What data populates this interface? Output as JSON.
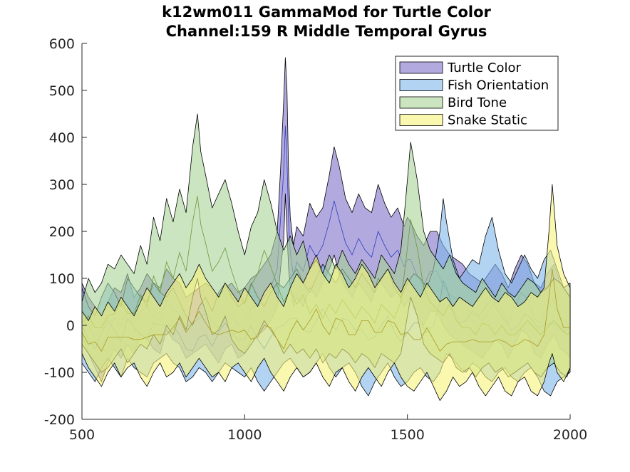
{
  "chart_data": {
    "type": "area",
    "title": [
      "k12wm011 GammaMod for Turtle Color",
      "Channel:159 R Middle Temporal Gyrus"
    ],
    "xlabel": "",
    "ylabel": "",
    "xlim": [
      500,
      2000
    ],
    "ylim": [
      -200,
      600
    ],
    "xticks": [
      500,
      1000,
      1500,
      2000
    ],
    "yticks": [
      -200,
      -100,
      0,
      100,
      200,
      300,
      400,
      500,
      600
    ],
    "grid": false,
    "legend_position": "top-right",
    "series": [
      {
        "name": "Turtle Color",
        "fill_color": "#7f70c8",
        "line_color": "#2a3fc0",
        "x": [
          500,
          520,
          540,
          560,
          580,
          600,
          620,
          640,
          660,
          680,
          700,
          720,
          740,
          760,
          780,
          800,
          820,
          840,
          860,
          880,
          900,
          920,
          940,
          960,
          980,
          1000,
          1020,
          1040,
          1060,
          1080,
          1100,
          1110,
          1120,
          1125,
          1130,
          1135,
          1140,
          1150,
          1160,
          1180,
          1200,
          1220,
          1240,
          1260,
          1275,
          1290,
          1310,
          1330,
          1350,
          1370,
          1390,
          1410,
          1430,
          1450,
          1470,
          1490,
          1500,
          1510,
          1530,
          1550,
          1570,
          1590,
          1610,
          1630,
          1650,
          1670,
          1690,
          1710,
          1730,
          1750,
          1770,
          1790,
          1810,
          1830,
          1850,
          1870,
          1890,
          1910,
          1930,
          1950,
          1970,
          1990,
          2000
        ],
        "upper": [
          90,
          60,
          40,
          20,
          50,
          80,
          70,
          110,
          60,
          80,
          110,
          90,
          80,
          120,
          100,
          90,
          60,
          70,
          80,
          90,
          80,
          60,
          80,
          90,
          70,
          80,
          100,
          110,
          130,
          150,
          200,
          330,
          480,
          570,
          500,
          320,
          230,
          170,
          210,
          190,
          260,
          230,
          250,
          320,
          380,
          340,
          270,
          240,
          280,
          250,
          240,
          300,
          260,
          230,
          250,
          210,
          230,
          220,
          190,
          170,
          200,
          200,
          170,
          150,
          140,
          130,
          110,
          100,
          90,
          110,
          130,
          110,
          80,
          120,
          150,
          130,
          90,
          80,
          110,
          130,
          90,
          70,
          60
        ],
        "lower": [
          -20,
          -60,
          -90,
          -120,
          -80,
          -50,
          -70,
          -40,
          -60,
          -20,
          -30,
          -50,
          -60,
          -10,
          -30,
          -40,
          -70,
          -60,
          -50,
          -40,
          -60,
          -80,
          -50,
          -40,
          -70,
          -60,
          -30,
          -20,
          -10,
          10,
          40,
          120,
          180,
          280,
          200,
          120,
          80,
          40,
          60,
          40,
          80,
          60,
          90,
          120,
          150,
          110,
          80,
          60,
          90,
          70,
          50,
          100,
          80,
          60,
          70,
          40,
          50,
          60,
          20,
          0,
          30,
          30,
          0,
          -20,
          -30,
          -40,
          -50,
          -60,
          -70,
          -50,
          -30,
          -40,
          -70,
          -40,
          -10,
          -20,
          -60,
          -70,
          -40,
          -20,
          -50,
          -60,
          -70
        ]
      },
      {
        "name": "Fish Orientation",
        "fill_color": "#7fb8ea",
        "line_color": "#1f6fc0",
        "x": [
          500,
          520,
          540,
          560,
          580,
          600,
          620,
          640,
          660,
          680,
          700,
          720,
          740,
          760,
          780,
          800,
          820,
          840,
          860,
          880,
          900,
          920,
          940,
          960,
          980,
          1000,
          1020,
          1040,
          1060,
          1080,
          1100,
          1120,
          1140,
          1160,
          1180,
          1200,
          1220,
          1240,
          1260,
          1280,
          1300,
          1320,
          1340,
          1360,
          1380,
          1400,
          1420,
          1440,
          1460,
          1480,
          1500,
          1520,
          1540,
          1560,
          1580,
          1600,
          1610,
          1620,
          1640,
          1660,
          1680,
          1700,
          1720,
          1740,
          1760,
          1780,
          1800,
          1820,
          1840,
          1860,
          1880,
          1900,
          1920,
          1940,
          1960,
          1980,
          2000
        ],
        "upper": [
          80,
          40,
          20,
          60,
          90,
          70,
          40,
          100,
          80,
          60,
          50,
          90,
          70,
          60,
          80,
          50,
          20,
          0,
          40,
          60,
          30,
          70,
          90,
          60,
          40,
          50,
          90,
          60,
          40,
          70,
          90,
          80,
          100,
          120,
          90,
          70,
          100,
          130,
          110,
          90,
          120,
          100,
          80,
          110,
          90,
          70,
          100,
          120,
          80,
          60,
          90,
          110,
          100,
          80,
          120,
          200,
          270,
          220,
          140,
          100,
          120,
          140,
          130,
          190,
          230,
          160,
          110,
          90,
          120,
          150,
          120,
          100,
          140,
          160,
          120,
          80,
          90
        ],
        "lower": [
          -80,
          -100,
          -120,
          -90,
          -70,
          -90,
          -110,
          -70,
          -90,
          -100,
          -110,
          -80,
          -70,
          -60,
          -80,
          -90,
          -120,
          -110,
          -90,
          -100,
          -120,
          -100,
          -80,
          -90,
          -100,
          -110,
          -90,
          -120,
          -140,
          -120,
          -100,
          -80,
          -70,
          -90,
          -110,
          -100,
          -80,
          -60,
          -90,
          -110,
          -90,
          -80,
          -100,
          -130,
          -150,
          -120,
          -100,
          -80,
          -110,
          -130,
          -120,
          -100,
          -90,
          -110,
          -120,
          -100,
          -80,
          -60,
          -70,
          -90,
          -100,
          -80,
          -90,
          -110,
          -120,
          -100,
          -90,
          -110,
          -120,
          -100,
          -90,
          -110,
          -140,
          -150,
          -120,
          -110,
          -100
        ]
      },
      {
        "name": "Bird Tone",
        "fill_color": "#a6d496",
        "line_color": "#6a9a3a",
        "x": [
          500,
          520,
          540,
          560,
          580,
          600,
          620,
          640,
          660,
          680,
          700,
          720,
          740,
          760,
          780,
          800,
          820,
          840,
          855,
          865,
          880,
          900,
          920,
          940,
          960,
          980,
          1000,
          1020,
          1040,
          1060,
          1080,
          1100,
          1120,
          1140,
          1160,
          1180,
          1200,
          1220,
          1240,
          1260,
          1280,
          1300,
          1320,
          1340,
          1360,
          1380,
          1400,
          1420,
          1440,
          1460,
          1480,
          1495,
          1510,
          1530,
          1550,
          1570,
          1590,
          1610,
          1630,
          1650,
          1670,
          1690,
          1710,
          1730,
          1750,
          1770,
          1790,
          1810,
          1830,
          1850,
          1870,
          1890,
          1910,
          1930,
          1950,
          1970,
          1990,
          2000
        ],
        "upper": [
          50,
          100,
          70,
          90,
          130,
          120,
          150,
          130,
          110,
          170,
          130,
          230,
          180,
          270,
          220,
          290,
          240,
          380,
          450,
          370,
          320,
          250,
          280,
          310,
          260,
          200,
          150,
          210,
          240,
          310,
          260,
          200,
          160,
          190,
          150,
          180,
          120,
          140,
          110,
          150,
          120,
          160,
          130,
          110,
          140,
          120,
          100,
          150,
          130,
          110,
          160,
          270,
          390,
          310,
          200,
          160,
          140,
          120,
          150,
          110,
          90,
          80,
          70,
          100,
          80,
          60,
          90,
          70,
          60,
          80,
          100,
          90,
          70,
          80,
          100,
          90,
          70,
          60
        ],
        "lower": [
          -40,
          -60,
          -80,
          -100,
          -90,
          -70,
          -50,
          -80,
          -60,
          -40,
          -50,
          -20,
          -40,
          0,
          -20,
          20,
          -10,
          60,
          100,
          60,
          30,
          -20,
          -10,
          20,
          -30,
          -50,
          -60,
          -40,
          -20,
          10,
          -10,
          -30,
          -60,
          -40,
          -60,
          -50,
          -70,
          -50,
          -80,
          -60,
          -70,
          -50,
          -60,
          -80,
          -60,
          -70,
          -90,
          -60,
          -70,
          -80,
          -60,
          0,
          60,
          20,
          -40,
          -60,
          -70,
          -80,
          -60,
          -90,
          -100,
          -90,
          -110,
          -90,
          -80,
          -100,
          -90,
          -110,
          -100,
          -90,
          -80,
          -100,
          -110,
          -90,
          -80,
          -100,
          -110,
          -90
        ]
      },
      {
        "name": "Snake Static",
        "fill_color": "#f7f27a",
        "line_color": "#a89b20",
        "x": [
          500,
          520,
          540,
          560,
          580,
          600,
          620,
          640,
          660,
          680,
          700,
          720,
          740,
          760,
          780,
          800,
          820,
          840,
          860,
          880,
          900,
          920,
          940,
          960,
          980,
          1000,
          1020,
          1040,
          1060,
          1080,
          1100,
          1120,
          1140,
          1160,
          1180,
          1200,
          1220,
          1240,
          1260,
          1280,
          1300,
          1320,
          1340,
          1360,
          1380,
          1400,
          1420,
          1440,
          1460,
          1480,
          1500,
          1520,
          1540,
          1560,
          1580,
          1600,
          1620,
          1640,
          1660,
          1680,
          1700,
          1720,
          1740,
          1760,
          1780,
          1800,
          1820,
          1840,
          1860,
          1880,
          1900,
          1920,
          1935,
          1945,
          1960,
          1980,
          2000
        ],
        "upper": [
          30,
          10,
          40,
          20,
          50,
          30,
          60,
          40,
          20,
          50,
          80,
          60,
          40,
          70,
          90,
          110,
          80,
          100,
          130,
          100,
          80,
          60,
          90,
          70,
          50,
          80,
          60,
          40,
          70,
          90,
          60,
          40,
          80,
          110,
          90,
          120,
          150,
          110,
          90,
          130,
          110,
          80,
          100,
          130,
          110,
          80,
          100,
          120,
          90,
          70,
          100,
          80,
          60,
          90,
          70,
          50,
          60,
          40,
          60,
          50,
          40,
          60,
          80,
          60,
          50,
          70,
          60,
          40,
          50,
          70,
          60,
          80,
          200,
          300,
          170,
          110,
          80
        ],
        "lower": [
          -60,
          -90,
          -110,
          -130,
          -100,
          -80,
          -110,
          -90,
          -80,
          -110,
          -130,
          -100,
          -80,
          -110,
          -100,
          -80,
          -110,
          -90,
          -70,
          -90,
          -110,
          -100,
          -120,
          -90,
          -80,
          -100,
          -120,
          -90,
          -70,
          -100,
          -120,
          -140,
          -110,
          -90,
          -110,
          -100,
          -80,
          -110,
          -130,
          -100,
          -90,
          -120,
          -140,
          -110,
          -90,
          -110,
          -130,
          -100,
          -80,
          -110,
          -130,
          -140,
          -120,
          -100,
          -130,
          -160,
          -140,
          -110,
          -130,
          -120,
          -100,
          -130,
          -150,
          -130,
          -110,
          -140,
          -150,
          -120,
          -110,
          -140,
          -150,
          -120,
          -80,
          -60,
          -100,
          -120,
          -90
        ]
      }
    ]
  }
}
